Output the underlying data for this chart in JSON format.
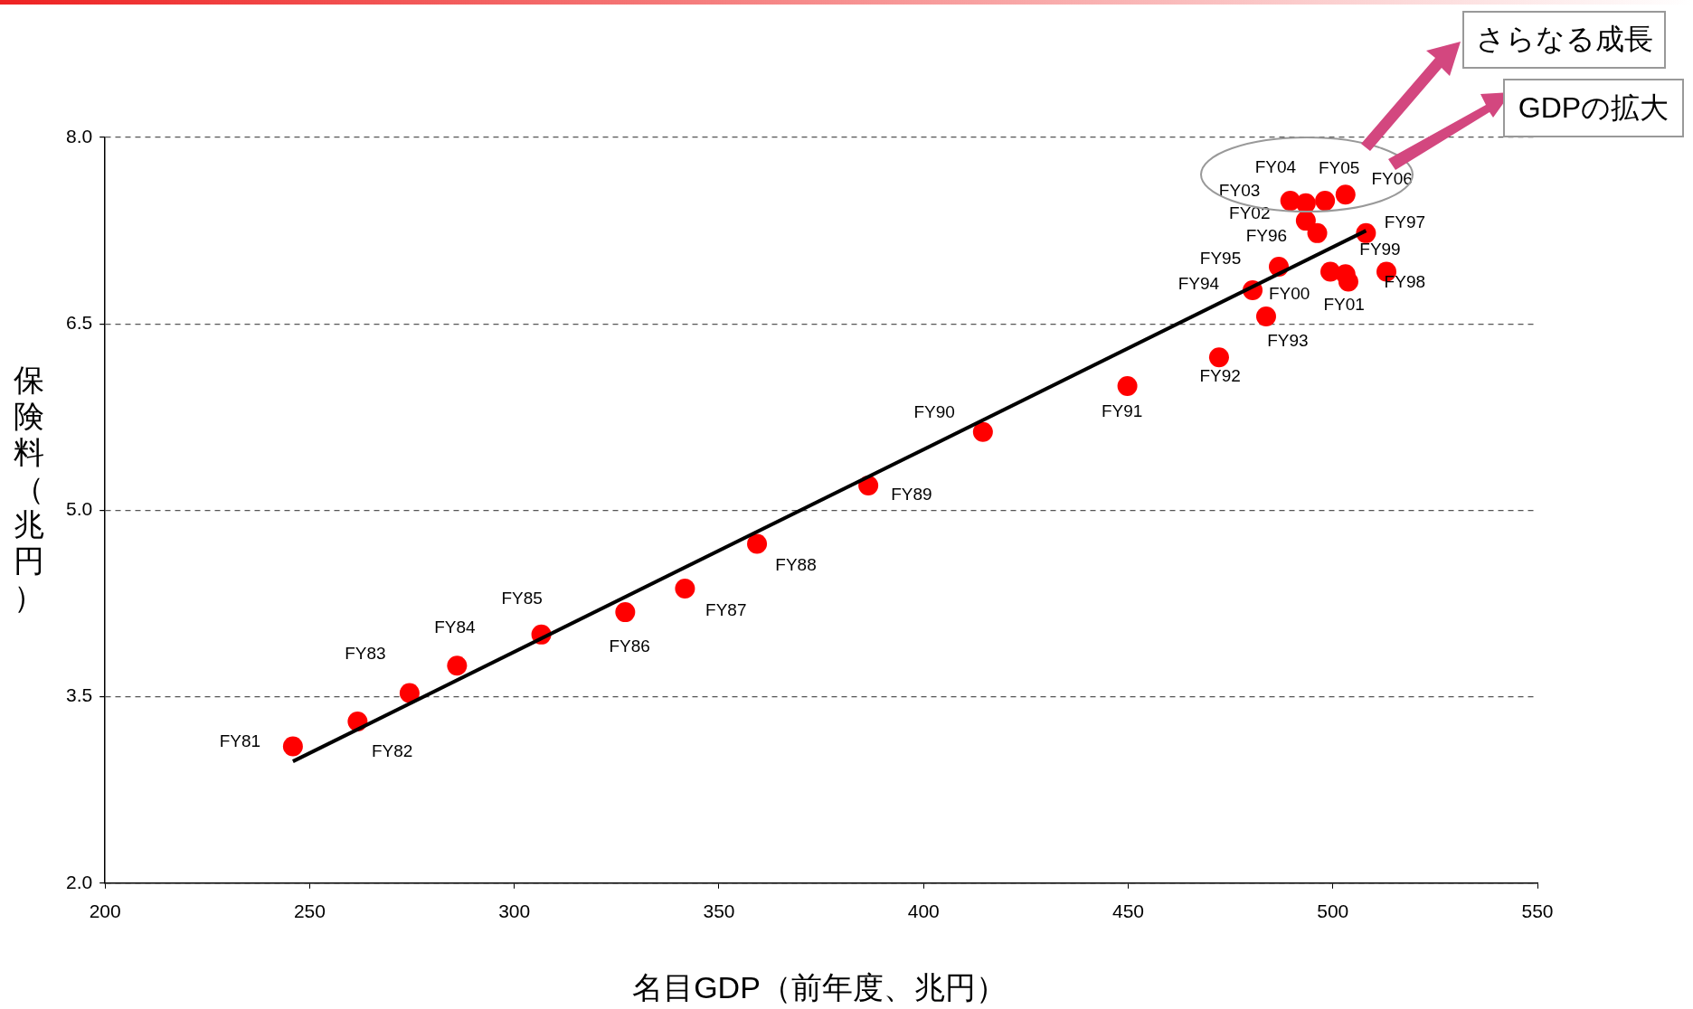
{
  "chart_data": {
    "type": "scatter",
    "xlabel": "名目GDP（前年度、兆円）",
    "ylabel": "保険料（兆円）",
    "annotations": [
      "さらなる成長",
      "GDPの拡大"
    ],
    "xlim": [
      200,
      550
    ],
    "xticks": [
      200,
      250,
      300,
      350,
      400,
      450,
      500,
      550
    ],
    "ylim": [
      2,
      8
    ],
    "yticks": [
      {
        "value": 2,
        "label": "2.0"
      },
      {
        "value": 3.5,
        "label": "3.5"
      },
      {
        "value": 5,
        "label": "5.0"
      },
      {
        "value": 6.5,
        "label": "6.5"
      },
      {
        "value": 8,
        "label": "8.0"
      }
    ],
    "grid": "y",
    "legend": false,
    "series": [
      {
        "color": "#ff0000",
        "marker": "circle",
        "x": [
          245.9,
          261.7,
          274.4,
          286.0,
          306.6,
          327.1,
          341.7,
          359.3,
          386.5,
          414.5,
          449.8,
          472.2,
          483.7,
          480.4,
          486.8,
          496.2,
          508.1,
          513.1,
          503.1,
          499.4,
          503.8,
          493.4,
          489.6,
          493.4,
          498.1,
          503.1
        ],
        "values": [
          3.1,
          3.3,
          3.53,
          3.75,
          4.0,
          4.18,
          4.37,
          4.73,
          5.2,
          5.63,
          6.0,
          6.23,
          6.56,
          6.77,
          6.96,
          7.23,
          7.23,
          6.92,
          6.9,
          6.92,
          6.84,
          7.33,
          7.49,
          7.47,
          7.49,
          7.54
        ],
        "value_labels": [
          "FY81",
          "FY82",
          "FY83",
          "FY84",
          "FY85",
          "FY86",
          "FY87",
          "FY88",
          "FY89",
          "FY90",
          "FY91",
          "FY92",
          "FY93",
          "FY94",
          "FY95",
          "FY96",
          "FY97",
          "FY98",
          "FY99",
          "FY00",
          "FY01",
          "FY02",
          "FY03",
          "FY04",
          "FY05",
          "FY06"
        ]
      },
      {
        "type": "line",
        "color": "#000000",
        "x": [
          245.9,
          508.1
        ],
        "values": [
          2.98,
          7.25
        ]
      }
    ]
  }
}
